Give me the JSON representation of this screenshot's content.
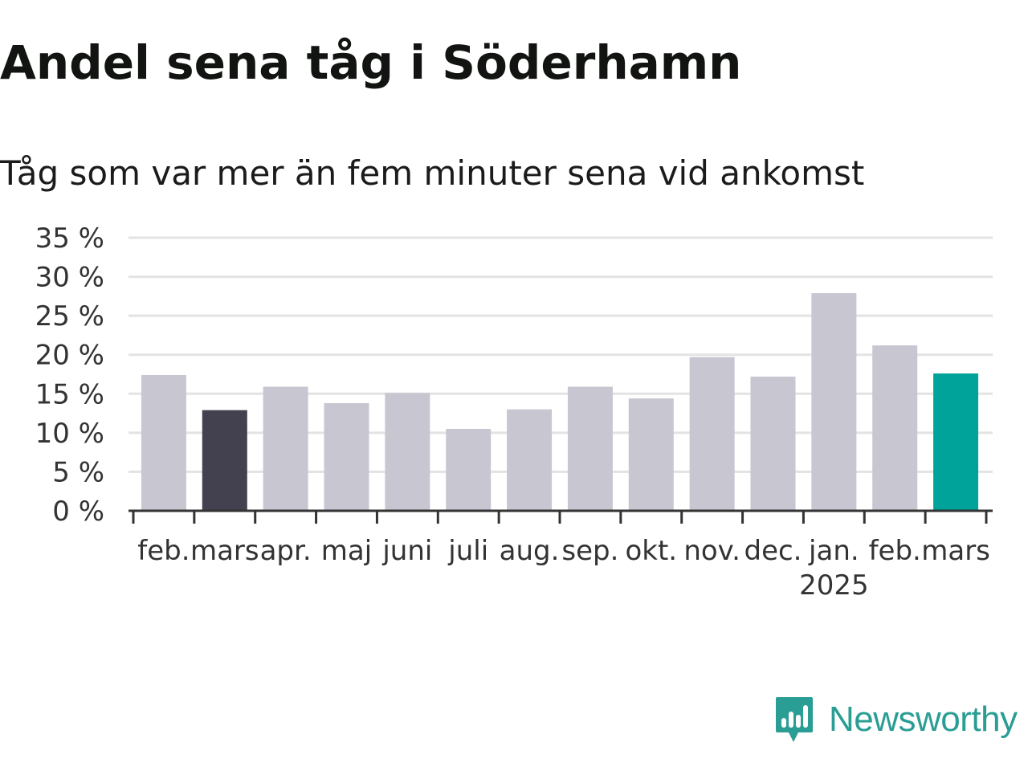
{
  "title": "Andel sena tåg i Söderhamn",
  "subtitle": "Tåg som var mer än fem minuter sena vid ankomst",
  "brand": {
    "name": "Newsworthy",
    "color": "#2a9d94",
    "icon": "chat-bar-chart-logo-icon"
  },
  "colors": {
    "default_bar": "#c8c6d1",
    "highlight_dark": "#43414f",
    "highlight_current": "#00a39a",
    "grid": "#e3e3e3",
    "axis": "#333333"
  },
  "chart_data": {
    "type": "bar",
    "title": "Andel sena tåg i Söderhamn",
    "subtitle": "Tåg som var mer än fem minuter sena vid ankomst",
    "categories": [
      "feb.",
      "mars",
      "apr.",
      "maj",
      "juni",
      "juli",
      "aug.",
      "sep.",
      "okt.",
      "nov.",
      "dec.",
      "jan.",
      "feb.",
      "mars"
    ],
    "year_labels": {
      "11": "2025"
    },
    "values": [
      17.4,
      12.9,
      15.9,
      13.8,
      15.1,
      10.5,
      13.0,
      15.9,
      14.4,
      19.7,
      17.2,
      27.9,
      21.2,
      17.6
    ],
    "bar_colors": [
      "#c8c6d1",
      "#43414f",
      "#c8c6d1",
      "#c8c6d1",
      "#c8c6d1",
      "#c8c6d1",
      "#c8c6d1",
      "#c8c6d1",
      "#c8c6d1",
      "#c8c6d1",
      "#c8c6d1",
      "#c8c6d1",
      "#c8c6d1",
      "#00a39a"
    ],
    "y_ticks": [
      0,
      5,
      10,
      15,
      20,
      25,
      30,
      35
    ],
    "y_tick_labels": [
      "0 %",
      "5 %",
      "10 %",
      "15 %",
      "20 %",
      "25 %",
      "30 %",
      "35 %"
    ],
    "ylim": [
      0,
      35
    ],
    "xlabel": "",
    "ylabel": "",
    "grid": true,
    "legend": "none"
  }
}
